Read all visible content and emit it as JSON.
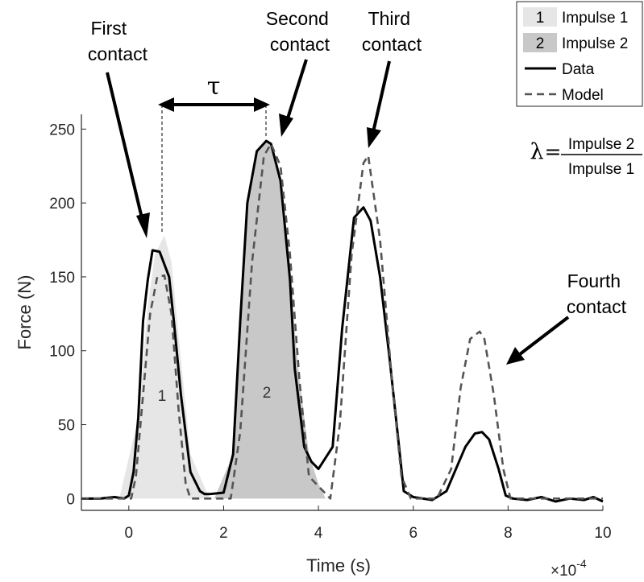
{
  "chart_data": {
    "type": "line",
    "xlabel": "Time (s)",
    "ylabel": "Force (N)",
    "x_exponent": "×10",
    "x_exponent_power": "-4",
    "xlim": [
      -1,
      10
    ],
    "ylim": [
      -8,
      260
    ],
    "xticks": [
      "0",
      "2",
      "4",
      "6",
      "8",
      "10"
    ],
    "xtick_values": [
      0,
      2,
      4,
      6,
      8,
      10
    ],
    "yticks": [
      "0",
      "50",
      "100",
      "150",
      "200",
      "250"
    ],
    "ytick_values": [
      0,
      50,
      100,
      150,
      200,
      250
    ],
    "grid": false,
    "legend_position": "top-right",
    "legend": [
      {
        "swatch_text": "1",
        "label": "Impulse 1",
        "kind": "patch",
        "color": "#e6e6e6"
      },
      {
        "swatch_text": "2",
        "label": "Impulse 2",
        "kind": "patch",
        "color": "#c8c8c8"
      },
      {
        "swatch_text": "",
        "label": "Data",
        "kind": "solid-line",
        "color": "#000000"
      },
      {
        "swatch_text": "",
        "label": "Model",
        "kind": "dashed-line",
        "color": "#555555"
      }
    ],
    "series": [
      {
        "name": "Data",
        "style": "solid",
        "color": "#000000",
        "x": [
          -1.0,
          -0.6,
          -0.3,
          -0.1,
          0.0,
          0.1,
          0.2,
          0.3,
          0.4,
          0.5,
          0.65,
          0.85,
          0.95,
          1.1,
          1.3,
          1.5,
          1.6,
          1.7,
          2.0,
          2.2,
          2.35,
          2.5,
          2.7,
          2.9,
          3.0,
          3.2,
          3.4,
          3.5,
          3.7,
          3.85,
          4.0,
          4.3,
          4.5,
          4.75,
          4.95,
          5.1,
          5.3,
          5.5,
          5.7,
          5.8,
          6.0,
          6.4,
          6.7,
          6.9,
          7.1,
          7.3,
          7.45,
          7.6,
          7.8,
          7.95,
          8.1,
          8.4,
          8.7,
          9.0,
          9.3,
          9.6,
          9.8,
          10.0
        ],
        "y": [
          0,
          0,
          1,
          0,
          2,
          18,
          55,
          120,
          148,
          168,
          167,
          150,
          120,
          70,
          18,
          5,
          3,
          3,
          4,
          30,
          120,
          200,
          235,
          242,
          240,
          215,
          148,
          88,
          35,
          25,
          20,
          35,
          115,
          190,
          197,
          188,
          150,
          95,
          35,
          5,
          1,
          -1,
          5,
          20,
          35,
          44,
          45,
          40,
          20,
          2,
          0,
          -1,
          1,
          -2,
          0,
          -1,
          1,
          -2
        ]
      },
      {
        "name": "Model",
        "style": "dashed",
        "color": "#555555",
        "x": [
          -1.0,
          0.05,
          0.15,
          0.3,
          0.45,
          0.6,
          0.75,
          0.9,
          1.05,
          1.2,
          1.3,
          2.15,
          2.35,
          2.6,
          2.85,
          3.0,
          3.2,
          3.4,
          3.6,
          3.8,
          4.25,
          4.45,
          4.7,
          4.95,
          5.05,
          5.3,
          5.55,
          5.75,
          5.95,
          6.5,
          6.8,
          7.0,
          7.2,
          7.4,
          7.5,
          7.7,
          7.9,
          8.05,
          10.0
        ],
        "y": [
          0,
          0,
          15,
          70,
          125,
          150,
          151,
          125,
          60,
          10,
          0,
          0,
          45,
          160,
          232,
          240,
          225,
          165,
          80,
          15,
          0,
          50,
          165,
          227,
          232,
          175,
          80,
          15,
          0,
          0,
          20,
          75,
          108,
          113,
          108,
          70,
          20,
          0,
          0
        ]
      }
    ],
    "impulse_regions": [
      {
        "label": "1",
        "color": "#e6e6e6",
        "x": [
          -0.2,
          0.2,
          0.4,
          0.55,
          0.75,
          0.9,
          1.05,
          1.3,
          1.7
        ],
        "y": [
          0,
          55,
          130,
          165,
          178,
          160,
          110,
          30,
          0
        ]
      },
      {
        "label": "2",
        "color": "#c8c8c8",
        "x": [
          1.8,
          2.2,
          2.35,
          2.5,
          2.7,
          2.9,
          3.0,
          3.2,
          3.4,
          3.6,
          3.8,
          4.0,
          4.15
        ],
        "y": [
          0,
          30,
          120,
          200,
          235,
          242,
          240,
          215,
          148,
          80,
          30,
          10,
          0
        ]
      }
    ],
    "tau_marker": {
      "label": "τ",
      "x_start": 0.7,
      "x_end": 2.9,
      "y_start": 172,
      "y_end": 240
    },
    "annotations": [
      {
        "lines": [
          "First",
          "contact"
        ]
      },
      {
        "lines": [
          "Second",
          "contact"
        ]
      },
      {
        "lines": [
          "Third",
          "contact"
        ]
      },
      {
        "lines": [
          "Fourth",
          "contact"
        ]
      }
    ],
    "ratio_formula": {
      "symbol": "λ",
      "equals": "=",
      "numerator": "Impulse 2",
      "denominator": "Impulse 1"
    }
  }
}
